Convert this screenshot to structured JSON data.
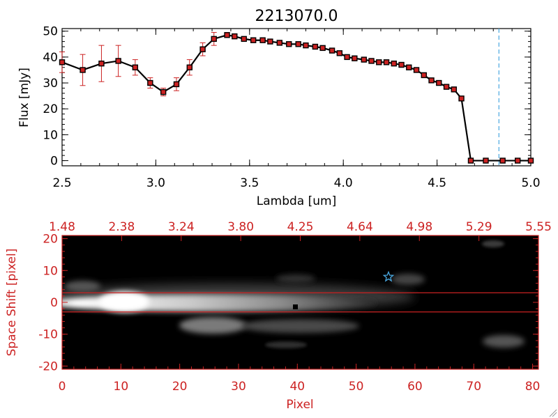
{
  "chart_data": [
    {
      "type": "line",
      "title": "2213070.0",
      "xlabel": "Lambda [um]",
      "ylabel": "Flux [mJy]",
      "xlim": [
        2.5,
        5.0
      ],
      "ylim": [
        -2,
        51
      ],
      "xticks": [
        "2.5",
        "3.0",
        "3.5",
        "4.0",
        "4.5",
        "5.0"
      ],
      "yticks": [
        "0",
        "10",
        "20",
        "30",
        "40",
        "50"
      ],
      "grid": false,
      "line_color": "#000000",
      "marker_color": "#cc2222",
      "error_color": "#cc2222",
      "cutoff_line": {
        "x": 4.83,
        "color": "#4aa8e0"
      },
      "x": [
        2.5,
        2.61,
        2.71,
        2.8,
        2.89,
        2.97,
        3.04,
        3.11,
        3.18,
        3.25,
        3.31,
        3.38,
        3.42,
        3.47,
        3.52,
        3.57,
        3.61,
        3.66,
        3.71,
        3.76,
        3.8,
        3.85,
        3.89,
        3.94,
        3.98,
        4.02,
        4.06,
        4.11,
        4.15,
        4.19,
        4.23,
        4.27,
        4.31,
        4.35,
        4.39,
        4.43,
        4.47,
        4.51,
        4.55,
        4.59,
        4.63,
        4.68,
        4.76,
        4.85,
        4.93,
        5.0
      ],
      "y": [
        38,
        35,
        37.5,
        38.5,
        36,
        30,
        26.5,
        29.5,
        36,
        43,
        47,
        48.5,
        48,
        47,
        46.5,
        46.5,
        46,
        45.5,
        45,
        45,
        44.5,
        44,
        43.5,
        42.5,
        41.5,
        40,
        39.5,
        39,
        38.5,
        38,
        38,
        37.5,
        37,
        36,
        35,
        33,
        31,
        30,
        28.5,
        27.5,
        24,
        0,
        0,
        0,
        0,
        0
      ],
      "yerr": [
        4,
        6,
        7,
        6,
        3,
        2,
        1.5,
        2.5,
        3,
        2.5,
        2.5,
        1,
        1,
        0.5,
        0.5,
        0.5,
        0.5,
        0.5,
        0.5,
        0.5,
        0.5,
        0.5,
        0.5,
        0.5,
        0.5,
        0.5,
        0.5,
        0.5,
        0.5,
        0.5,
        0.5,
        0.5,
        0.5,
        0.5,
        0.5,
        0.5,
        0.5,
        0.5,
        0.5,
        0.5,
        0.5,
        0.3,
        0.3,
        0.3,
        0.3,
        0.3
      ]
    },
    {
      "type": "heatmap",
      "xlabel": "Pixel",
      "ylabel": "Space Shift [pixel]",
      "xlim": [
        0,
        81
      ],
      "ylim": [
        -21,
        21
      ],
      "xticks": [
        "0",
        "10",
        "20",
        "30",
        "40",
        "50",
        "60",
        "70",
        "80"
      ],
      "yticks": [
        "-20",
        "-10",
        "0",
        "10",
        "20"
      ],
      "top_axis_ticks": [
        "1.48",
        "2.38",
        "3.24",
        "3.80",
        "4.25",
        "4.64",
        "4.98",
        "5.29",
        "5.55"
      ],
      "axis_color": "#cc2222",
      "extraction_window": [
        -3,
        3
      ],
      "source_marker": {
        "x": 55.5,
        "y": 8,
        "symbol": "star",
        "color": "#4aa8e0"
      },
      "colormap": "grayscale"
    }
  ]
}
